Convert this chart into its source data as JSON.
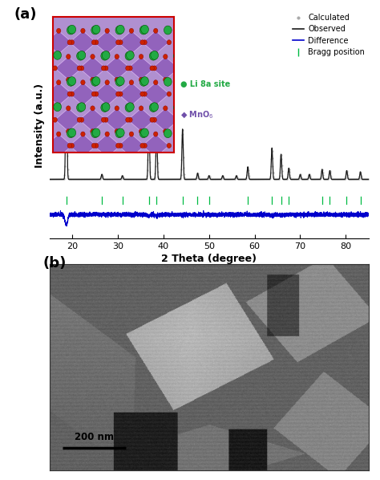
{
  "title_a": "(a)",
  "title_b": "(b)",
  "xlabel": "2 Theta (degree)",
  "ylabel": "Intensity (a.u.)",
  "xlim": [
    15,
    85
  ],
  "ylim_xrd": [
    -0.45,
    1.35
  ],
  "xticks": [
    20,
    30,
    40,
    50,
    60,
    70,
    80
  ],
  "background_color": "#ffffff",
  "observed_color": "#1a1a1a",
  "calculated_color": "#c0c0c0",
  "difference_color": "#0000cc",
  "bragg_color": "#00bb44",
  "peak_positions": [
    18.7,
    36.8,
    38.5,
    44.2,
    58.5,
    63.8,
    65.8,
    74.8,
    76.5,
    80.2,
    83.2
  ],
  "peak_heights": [
    1.0,
    0.48,
    0.38,
    0.4,
    0.1,
    0.25,
    0.2,
    0.08,
    0.07,
    0.07,
    0.06
  ],
  "small_peaks": [
    [
      26.5,
      0.04
    ],
    [
      31.0,
      0.03
    ],
    [
      47.5,
      0.05
    ],
    [
      50.0,
      0.03
    ],
    [
      53.0,
      0.03
    ],
    [
      56.0,
      0.03
    ],
    [
      67.5,
      0.09
    ],
    [
      70.0,
      0.04
    ],
    [
      72.0,
      0.04
    ]
  ],
  "bragg_positions": [
    18.7,
    26.5,
    31.0,
    36.8,
    38.5,
    44.2,
    47.5,
    50.0,
    58.5,
    63.8,
    65.8,
    67.5,
    74.8,
    76.5,
    80.2,
    83.2
  ],
  "legend_entries": [
    "Calculated",
    "Observed",
    "Difference",
    "Bragg position"
  ],
  "scale_bar_text": "200 nm",
  "inset_bg": "#b090d0",
  "inset_octahedra_face": "#9060bb",
  "inset_octahedra_edge": "#d8b0f0",
  "li_color": "#22aa44",
  "o_color": "#cc3322",
  "red_border": "#cc0000"
}
